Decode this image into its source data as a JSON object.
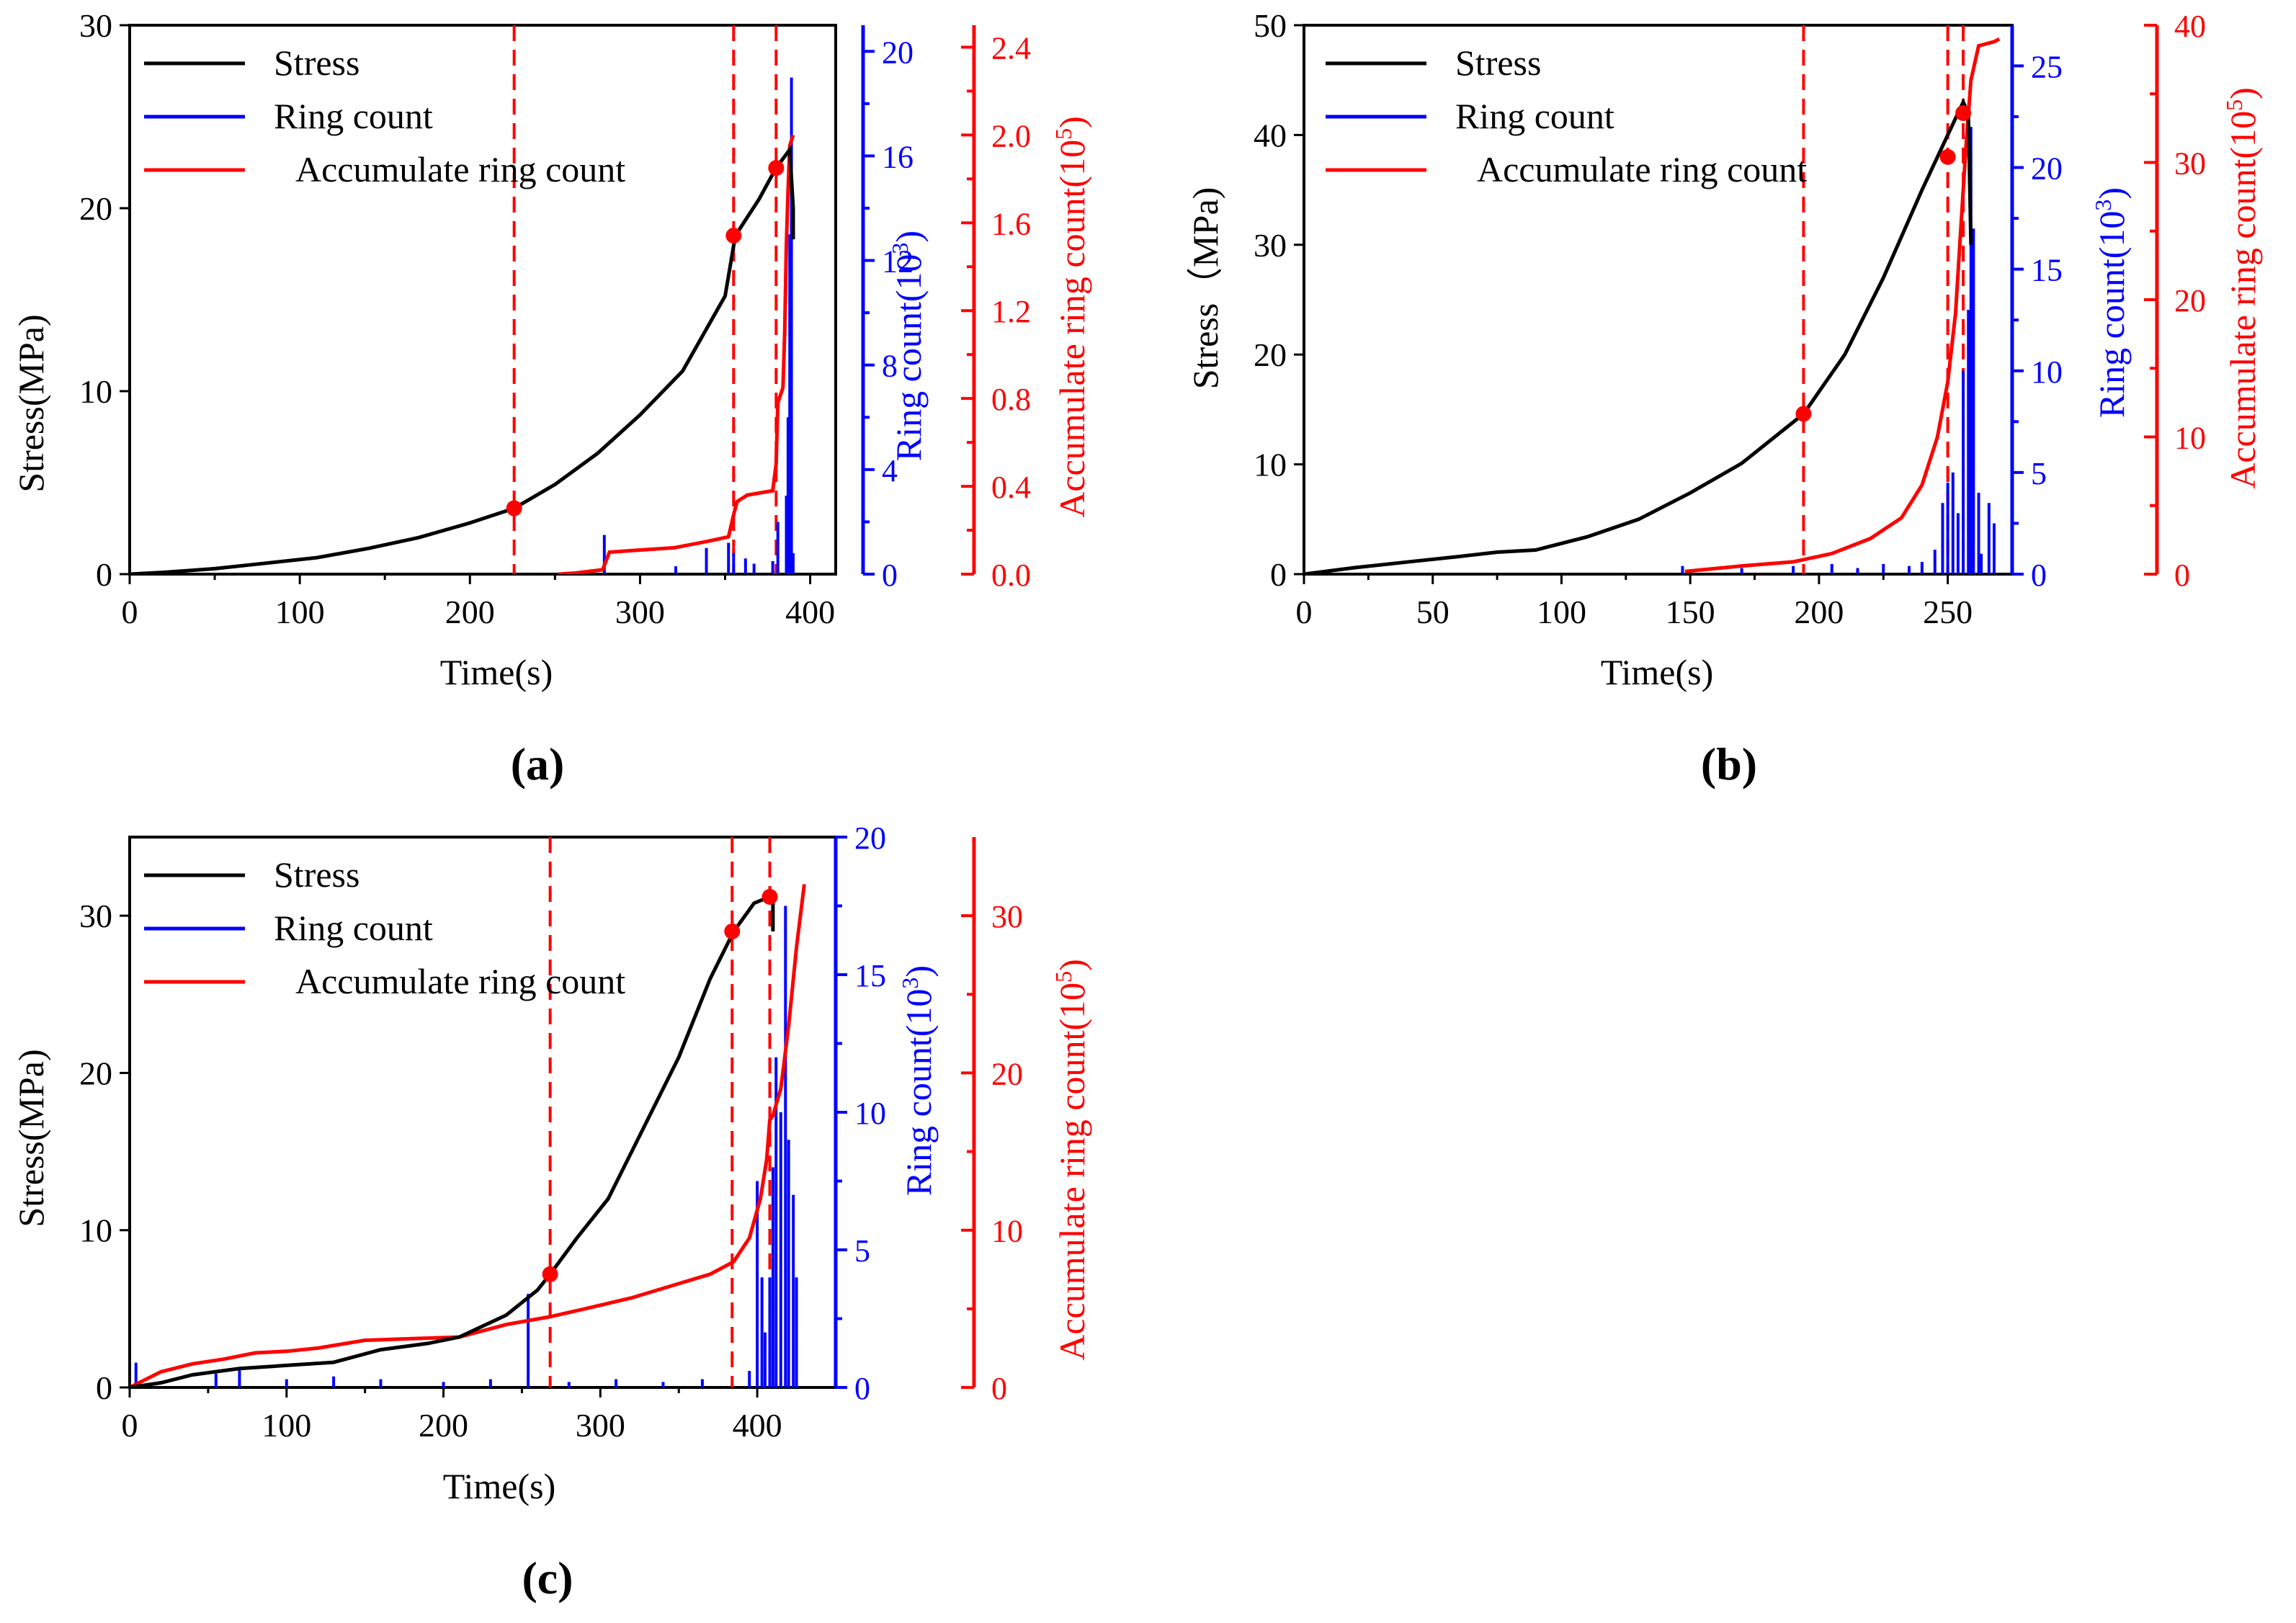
{
  "panels_label_style": "bold",
  "colors": {
    "stress": "#000000",
    "ring": "#0000ff",
    "accum": "#ff0000"
  },
  "chart_data": [
    {
      "panel_label": "(a)",
      "type": "line",
      "xlabel": "Time(s)",
      "ylabel_left": "Stress(MPa)",
      "ylabel_ring": "Ring count(10",
      "ylabel_ring_sup": "3",
      "ylabel_accum": "Accumulate ring count(10",
      "ylabel_accum_sup": "5",
      "xlim": [
        0,
        415
      ],
      "xticks": [
        0,
        100,
        200,
        300,
        400
      ],
      "stress_lim": [
        0,
        30
      ],
      "stress_ticks": [
        0,
        10,
        20,
        30
      ],
      "ring_lim": [
        0,
        21
      ],
      "ring_ticks": [
        0,
        4,
        8,
        12,
        16,
        20
      ],
      "accum_lim": [
        0,
        2.5
      ],
      "accum_ticks": [
        "0.0",
        "0.4",
        "0.8",
        "1.2",
        "1.6",
        "2.0",
        "2.4"
      ],
      "legend": [
        "Stress",
        "Ring count",
        "Accumulate ring count"
      ],
      "stress": [
        [
          0,
          0
        ],
        [
          20,
          0.1
        ],
        [
          50,
          0.3
        ],
        [
          80,
          0.6
        ],
        [
          110,
          0.9
        ],
        [
          140,
          1.4
        ],
        [
          170,
          2.0
        ],
        [
          200,
          2.8
        ],
        [
          226,
          3.6
        ],
        [
          250,
          4.9
        ],
        [
          275,
          6.6
        ],
        [
          300,
          8.7
        ],
        [
          325,
          11.1
        ],
        [
          350,
          15.2
        ],
        [
          356,
          18.5
        ],
        [
          370,
          20.5
        ],
        [
          380,
          22.2
        ],
        [
          388,
          23.2
        ],
        [
          390,
          20.0
        ],
        [
          390,
          18.3
        ]
      ],
      "accum": [
        [
          252,
          0
        ],
        [
          262,
          0.005
        ],
        [
          278,
          0.02
        ],
        [
          282,
          0.1
        ],
        [
          300,
          0.11
        ],
        [
          320,
          0.12
        ],
        [
          340,
          0.15
        ],
        [
          352,
          0.17
        ],
        [
          355,
          0.27
        ],
        [
          357,
          0.33
        ],
        [
          363,
          0.36
        ],
        [
          378,
          0.38
        ],
        [
          380,
          0.5
        ],
        [
          381,
          0.78
        ],
        [
          384,
          0.85
        ],
        [
          385,
          1.1
        ],
        [
          386,
          1.5
        ],
        [
          387,
          1.75
        ],
        [
          388,
          1.95
        ],
        [
          390,
          2.0
        ]
      ],
      "ring": [
        [
          279,
          1.5
        ],
        [
          321,
          0.3
        ],
        [
          339,
          1.0
        ],
        [
          352,
          1.2
        ],
        [
          355,
          0.8
        ],
        [
          362,
          0.6
        ],
        [
          367,
          0.4
        ],
        [
          378,
          0.5
        ],
        [
          381,
          2.0
        ],
        [
          386,
          3.0
        ],
        [
          387,
          6.0
        ],
        [
          388,
          13.0
        ],
        [
          389,
          19.0
        ],
        [
          390,
          0.8
        ]
      ],
      "markers": [
        [
          226,
          3.6
        ],
        [
          355,
          18.5
        ],
        [
          380,
          22.2
        ]
      ],
      "vlines": [
        226,
        355,
        380
      ]
    },
    {
      "panel_label": "(b)",
      "type": "line",
      "xlabel": "Time(s)",
      "ylabel_left": "Stress（MPa)",
      "ylabel_ring": "Ring count(10",
      "ylabel_ring_sup": "3",
      "ylabel_accum": "Accumulate ring count(10",
      "ylabel_accum_sup": "5",
      "xlim": [
        0,
        275
      ],
      "xticks": [
        0,
        50,
        100,
        150,
        200,
        250
      ],
      "stress_lim": [
        0,
        50
      ],
      "stress_ticks": [
        0,
        10,
        20,
        30,
        40,
        50
      ],
      "ring_lim": [
        0,
        27
      ],
      "ring_ticks": [
        0,
        5,
        10,
        15,
        20,
        25
      ],
      "accum_lim": [
        0,
        40
      ],
      "accum_ticks": [
        0,
        10,
        20,
        30,
        40
      ],
      "legend": [
        "Stress",
        "Ring count",
        "Accumulate ring count"
      ],
      "stress": [
        [
          0,
          0
        ],
        [
          20,
          0.6
        ],
        [
          40,
          1.1
        ],
        [
          60,
          1.6
        ],
        [
          75,
          2.0
        ],
        [
          90,
          2.2
        ],
        [
          110,
          3.4
        ],
        [
          130,
          5.0
        ],
        [
          150,
          7.4
        ],
        [
          170,
          10.1
        ],
        [
          194,
          14.6
        ],
        [
          210,
          20.0
        ],
        [
          225,
          27.0
        ],
        [
          240,
          35.0
        ],
        [
          248,
          39.0
        ],
        [
          254,
          42.0
        ],
        [
          256,
          43.0
        ],
        [
          258,
          42.0
        ],
        [
          259,
          30.0
        ]
      ],
      "accum": [
        [
          148,
          0.2
        ],
        [
          170,
          0.6
        ],
        [
          190,
          0.9
        ],
        [
          205,
          1.5
        ],
        [
          220,
          2.6
        ],
        [
          232,
          4.1
        ],
        [
          240,
          6.5
        ],
        [
          246,
          10.0
        ],
        [
          250,
          14.0
        ],
        [
          253,
          19.0
        ],
        [
          255,
          25.0
        ],
        [
          257,
          31.0
        ],
        [
          259,
          36.0
        ],
        [
          262,
          38.5
        ],
        [
          268,
          38.8
        ],
        [
          270,
          39.0
        ]
      ],
      "ring": [
        [
          147,
          0.4
        ],
        [
          170,
          0.3
        ],
        [
          190,
          0.4
        ],
        [
          205,
          0.5
        ],
        [
          215,
          0.3
        ],
        [
          225,
          0.5
        ],
        [
          235,
          0.4
        ],
        [
          240,
          0.6
        ],
        [
          245,
          1.2
        ],
        [
          248,
          3.5
        ],
        [
          250,
          4.5
        ],
        [
          252,
          5.0
        ],
        [
          254,
          3.0
        ],
        [
          256,
          10.0
        ],
        [
          258,
          13.0
        ],
        [
          259,
          22.0
        ],
        [
          260,
          17.0
        ],
        [
          262,
          4.0
        ],
        [
          263,
          1.0
        ],
        [
          266,
          3.5
        ],
        [
          268,
          2.5
        ]
      ],
      "markers": [
        [
          194,
          14.6
        ],
        [
          250,
          38.0
        ],
        [
          256,
          42.0
        ]
      ],
      "vlines": [
        194,
        250,
        256
      ]
    },
    {
      "panel_label": "(c)",
      "type": "line",
      "xlabel": "Time(s)",
      "ylabel_left": "Stress(MPa)",
      "ylabel_ring": "Ring count(10",
      "ylabel_ring_sup": "3",
      "ylabel_accum": "Accumulate ring count(10",
      "ylabel_accum_sup": "5",
      "xlim": [
        0,
        450
      ],
      "xticks": [
        0,
        100,
        200,
        300,
        400
      ],
      "stress_lim": [
        0,
        35
      ],
      "stress_ticks": [
        0,
        10,
        20,
        30
      ],
      "ring_lim": [
        0,
        20
      ],
      "ring_ticks": [
        0,
        5,
        10,
        15,
        20
      ],
      "accum_lim": [
        0,
        35
      ],
      "accum_ticks": [
        0,
        10,
        20,
        30
      ],
      "legend": [
        "Stress",
        "Ring count",
        "Accumulate ring count"
      ],
      "stress": [
        [
          0,
          0
        ],
        [
          20,
          0.3
        ],
        [
          40,
          0.8
        ],
        [
          70,
          1.2
        ],
        [
          100,
          1.4
        ],
        [
          130,
          1.6
        ],
        [
          160,
          2.4
        ],
        [
          190,
          2.8
        ],
        [
          210,
          3.2
        ],
        [
          240,
          4.6
        ],
        [
          260,
          6.2
        ],
        [
          268,
          7.2
        ],
        [
          285,
          9.5
        ],
        [
          305,
          12.0
        ],
        [
          325,
          16.0
        ],
        [
          350,
          21.0
        ],
        [
          370,
          26.0
        ],
        [
          385,
          29.0
        ],
        [
          398,
          30.8
        ],
        [
          408,
          31.2
        ],
        [
          410,
          31.0
        ],
        [
          410,
          29.0
        ]
      ],
      "accum": [
        [
          0,
          0
        ],
        [
          20,
          1.0
        ],
        [
          40,
          1.5
        ],
        [
          60,
          1.8
        ],
        [
          80,
          2.2
        ],
        [
          100,
          2.3
        ],
        [
          120,
          2.5
        ],
        [
          150,
          3.0
        ],
        [
          180,
          3.1
        ],
        [
          210,
          3.2
        ],
        [
          240,
          4.0
        ],
        [
          268,
          4.5
        ],
        [
          290,
          5.0
        ],
        [
          320,
          5.7
        ],
        [
          350,
          6.6
        ],
        [
          370,
          7.2
        ],
        [
          385,
          8.0
        ],
        [
          395,
          9.5
        ],
        [
          402,
          12.0
        ],
        [
          406,
          14.5
        ],
        [
          408,
          17.0
        ],
        [
          410,
          17.3
        ],
        [
          415,
          19.0
        ],
        [
          420,
          23.0
        ],
        [
          425,
          28.0
        ],
        [
          430,
          32.0
        ]
      ],
      "ring": [
        [
          4,
          0.9
        ],
        [
          55,
          0.5
        ],
        [
          70,
          0.7
        ],
        [
          100,
          0.3
        ],
        [
          130,
          0.4
        ],
        [
          160,
          0.3
        ],
        [
          200,
          0.2
        ],
        [
          230,
          0.3
        ],
        [
          254,
          3.4
        ],
        [
          280,
          0.2
        ],
        [
          310,
          0.3
        ],
        [
          340,
          0.2
        ],
        [
          365,
          0.3
        ],
        [
          395,
          0.6
        ],
        [
          400,
          7.5
        ],
        [
          403,
          4.0
        ],
        [
          405,
          2.0
        ],
        [
          408,
          4.0
        ],
        [
          410,
          8.0
        ],
        [
          412,
          12.0
        ],
        [
          415,
          10.0
        ],
        [
          418,
          17.5
        ],
        [
          420,
          9.0
        ],
        [
          423,
          7.0
        ],
        [
          425,
          4.0
        ]
      ],
      "markers": [
        [
          268,
          7.2
        ],
        [
          384,
          29.0
        ],
        [
          408,
          31.2
        ]
      ],
      "vlines": [
        268,
        384,
        408
      ]
    }
  ]
}
